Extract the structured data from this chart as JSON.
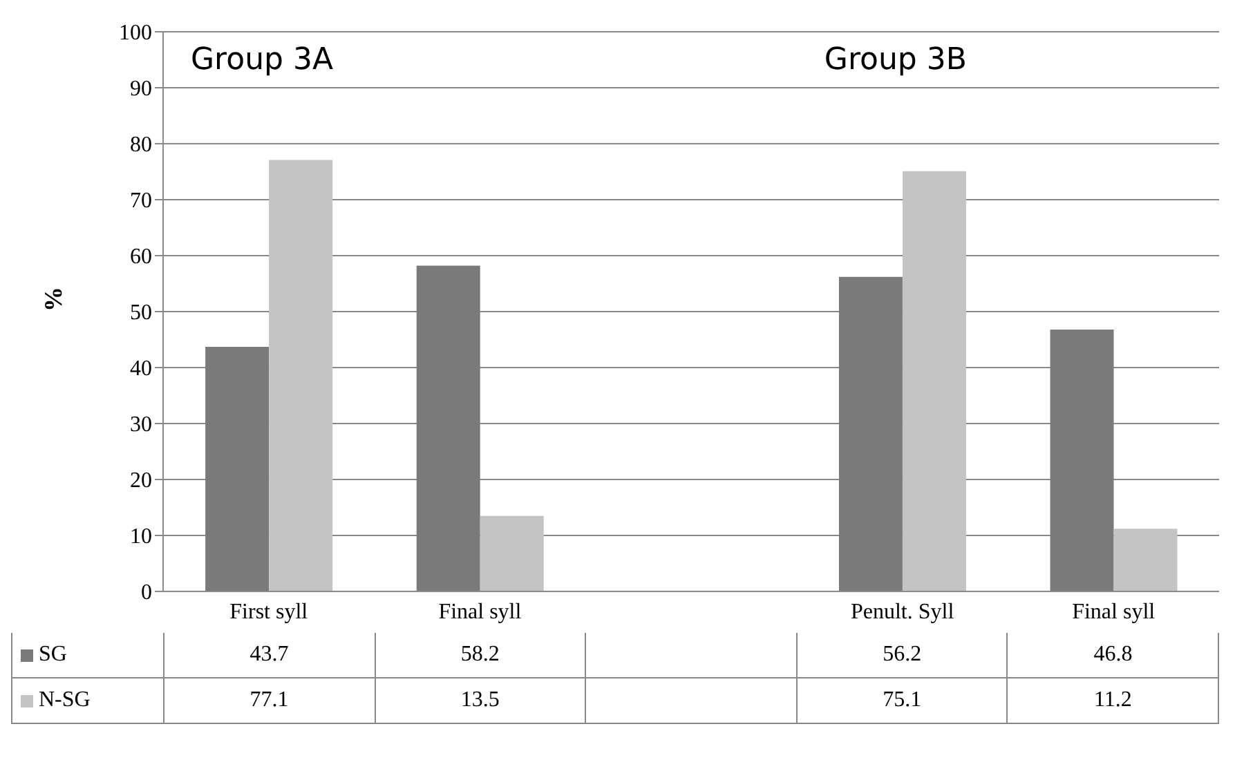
{
  "chart_data": {
    "type": "bar",
    "categories": [
      "First syll",
      "Final syll",
      null,
      "Penult. Syll",
      "Final syll"
    ],
    "series": [
      {
        "name": "SG",
        "color": "#7a7a7a",
        "values": [
          43.7,
          58.2,
          null,
          56.2,
          46.8
        ]
      },
      {
        "name": "N-SG",
        "color": "#c4c4c4",
        "values": [
          77.1,
          13.5,
          null,
          75.1,
          11.2
        ]
      }
    ],
    "ylabel": "%",
    "ylim": [
      0,
      100
    ],
    "yticks": [
      0,
      10,
      20,
      30,
      40,
      50,
      60,
      70,
      80,
      90,
      100
    ],
    "grid": "y",
    "legend": "bottom",
    "data_labels": true,
    "annotations": [
      "Group 3A",
      "Group 3B"
    ]
  }
}
